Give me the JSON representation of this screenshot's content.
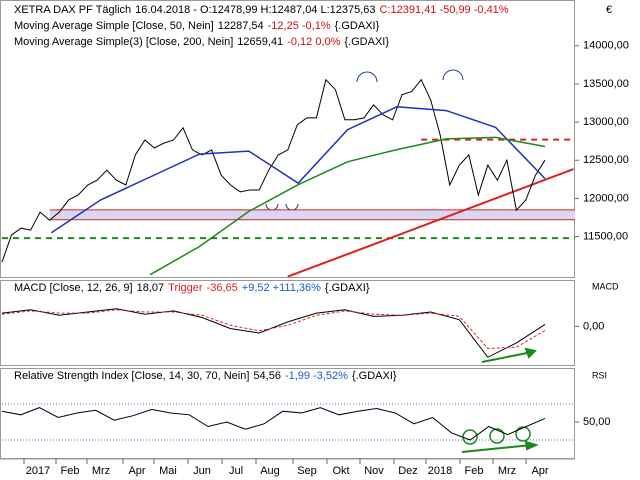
{
  "chart_data": [
    {
      "type": "line",
      "unit": "€",
      "ylim": [
        10970,
        14600
      ],
      "yticks": [
        {
          "value": 11500,
          "label": "11500,00"
        },
        {
          "value": 12000,
          "label": "12000,00"
        },
        {
          "value": 12500,
          "label": "12500,00"
        },
        {
          "value": 13000,
          "label": "13000,00"
        },
        {
          "value": 13500,
          "label": "13500,00"
        },
        {
          "value": 14000,
          "label": "14000,00"
        }
      ],
      "series": [
        {
          "name": "XETRA DAX PF Täglich",
          "readout": "16.04.2018 - O:12478,99 H:12487,04 L:12375,63",
          "change": "C:12391,41 -50,99 -0,41%",
          "color": "#000000",
          "values": [
            11165,
            11520,
            11610,
            11585,
            11820,
            11715,
            11820,
            11980,
            12045,
            12175,
            12240,
            12370,
            12240,
            12175,
            12570,
            12765,
            12660,
            12725,
            12765,
            12925,
            12635,
            12570,
            12635,
            12305,
            12175,
            12085,
            12110,
            12110,
            12370,
            12570,
            12635,
            12965,
            13055,
            13055,
            13555,
            13425,
            13030,
            13030,
            13055,
            13225,
            13095,
            13030,
            13360,
            13400,
            13555,
            13290,
            12830,
            12175,
            12435,
            12570,
            12045,
            12435,
            12240,
            12500,
            11845,
            11980,
            12305,
            12500
          ]
        },
        {
          "name": "Moving Average Simple [Close, 50, Nein]",
          "readout": "12287,54",
          "change": "-12,25 -0,1%",
          "suffix": "{.GDAXI}",
          "color": "#2030c0",
          "values": [
            null,
            11550,
            11980,
            12280,
            12580,
            12620,
            12200,
            12900,
            13200,
            13150,
            12930,
            12260
          ]
        },
        {
          "name": "Moving Average Simple(3) [Close, 200, Nein]",
          "readout": "12659,41",
          "change": "-0,12 0,0%",
          "suffix": "{.GDAXI}",
          "color": "#1a8a1a",
          "values": [
            null,
            null,
            null,
            11000,
            11370,
            11830,
            12180,
            12480,
            12640,
            12780,
            12800,
            12680
          ]
        }
      ],
      "bands": [
        {
          "range": [
            11720,
            11850
          ],
          "from": 5,
          "color": "#d8d8f4",
          "edge": "#e02020"
        }
      ],
      "levels": [
        {
          "value": 12770,
          "from": 44,
          "color": "#e02020",
          "dash": true
        },
        {
          "value": 11480,
          "from": 0,
          "color": "#1a8a1a",
          "dash": true
        }
      ],
      "trendline": {
        "x": [
          30,
          60
        ],
        "values": [
          10975,
          12385
        ],
        "color": "#e02020"
      }
    },
    {
      "type": "line",
      "side_label": "MACD",
      "change": "+9,52 +111,36%",
      "suffix": "{.GDAXI}",
      "ylim": [
        -350,
        420
      ],
      "yticks": [
        {
          "value": 0,
          "label": "0,00"
        }
      ],
      "series": [
        {
          "name": "MACD [Close, 12, 26, 9]",
          "readout": "18,07",
          "color": "#000000",
          "values": [
            120,
            150,
            100,
            130,
            160,
            110,
            140,
            80,
            -20,
            -60,
            40,
            120,
            150,
            90,
            100,
            130,
            60,
            -280,
            -150,
            18
          ]
        },
        {
          "name": "Trigger",
          "readout": "-36,65",
          "color": "#e02020",
          "dash": true,
          "values": [
            110,
            140,
            120,
            120,
            150,
            130,
            130,
            100,
            10,
            -40,
            10,
            100,
            140,
            110,
            100,
            120,
            90,
            -200,
            -190,
            -37
          ]
        }
      ]
    },
    {
      "type": "line",
      "side_label": "RSI",
      "change": "-1,99 -3,52%",
      "suffix": "{.GDAXI}",
      "ylim": [
        10,
        110
      ],
      "yticks": [
        {
          "value": 50,
          "label": "50,00"
        }
      ],
      "levels": [
        {
          "value": 70,
          "from": 0,
          "color": "#5070d0",
          "dash": true
        },
        {
          "value": 30,
          "from": 0,
          "color": "#5070d0",
          "dash": true
        }
      ],
      "series": [
        {
          "name": "Relative Strength Index [Close, 14, 30, 70, Nein]",
          "readout": "54,56",
          "color": "#000000",
          "values": [
            62,
            58,
            66,
            55,
            60,
            63,
            52,
            57,
            64,
            60,
            58,
            45,
            50,
            42,
            48,
            62,
            60,
            66,
            58,
            62,
            65,
            60,
            48,
            55,
            38,
            30,
            45,
            36,
            45,
            54
          ]
        }
      ]
    }
  ],
  "x_axis": {
    "labels": [
      "2017",
      "Feb",
      "Mrz",
      "Apr",
      "Mai",
      "Jun",
      "Jul",
      "Aug",
      "Sep",
      "Okt",
      "Nov",
      "Dez",
      "2018",
      "Feb",
      "Mrz",
      "Apr"
    ]
  }
}
